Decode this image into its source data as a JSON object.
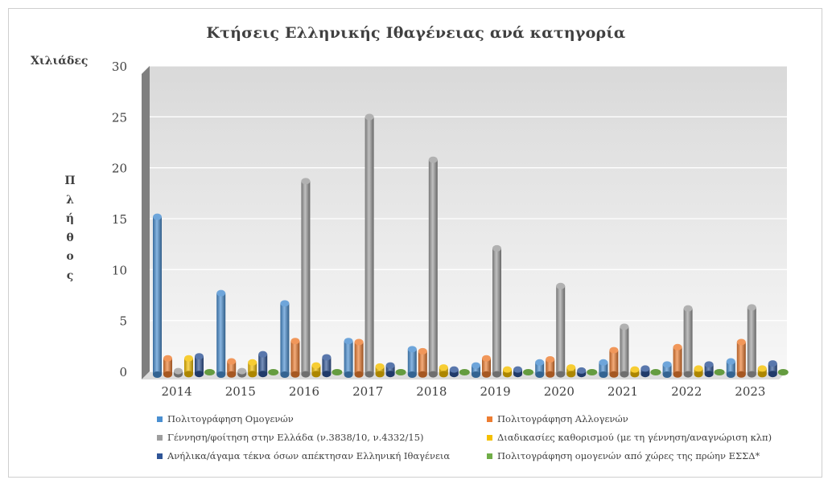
{
  "chart_data": {
    "type": "bar",
    "title": "Κτήσεις Ελληνικής Ιθαγένειας ανά κατηγορία",
    "unit_label": "Χιλιάδες",
    "ylabel": "Πλήθος",
    "ylim": [
      0,
      30
    ],
    "yticks": [
      0,
      5,
      10,
      15,
      20,
      25,
      30
    ],
    "grid": true,
    "legend_position": "bottom",
    "categories": [
      "2014",
      "2015",
      "2016",
      "2017",
      "2018",
      "2019",
      "2020",
      "2021",
      "2022",
      "2023"
    ],
    "series": [
      {
        "name": "Πολιτογράφηση Ομογενών",
        "color": "#4a8fd1",
        "values": [
          15.5,
          8.0,
          7.0,
          3.3,
          2.5,
          0.9,
          1.2,
          1.2,
          1.0,
          1.3
        ]
      },
      {
        "name": "Πολιτογράφηση Αλλογενών",
        "color": "#ed7d31",
        "values": [
          1.6,
          1.3,
          3.3,
          3.2,
          2.3,
          1.6,
          1.5,
          2.4,
          2.7,
          3.2
        ]
      },
      {
        "name": "Γέννηση/φοίτηση  στην Ελλάδα (ν.3838/10, ν.4332/15)",
        "color": "#9e9e9e",
        "values": [
          0.1,
          0.1,
          19.0,
          25.3,
          21.1,
          12.4,
          8.7,
          4.7,
          6.5,
          6.6
        ]
      },
      {
        "name": "Διαδικασίες καθορισμού (με τη γέννηση/αναγνώριση κλπ)",
        "color": "#f5c000",
        "values": [
          1.6,
          1.2,
          0.9,
          0.8,
          0.7,
          0.5,
          0.7,
          0.5,
          0.6,
          0.6
        ]
      },
      {
        "name": "Ανήλικα/άγαμα τέκνα όσων απέκτησαν Ελληνική Ιθαγένεια",
        "color": "#2f5597",
        "values": [
          1.8,
          2.0,
          1.7,
          0.9,
          0.5,
          0.5,
          0.4,
          0.6,
          1.0,
          1.1
        ]
      },
      {
        "name": "Πολιτογράφηση ομογενών από χώρες της πρώην ΕΣΣΔ*",
        "color": "#70ad47",
        "values": [
          0.0,
          0.0,
          0.0,
          0.0,
          0.0,
          0.0,
          0.0,
          0.0,
          0.0,
          0.0
        ]
      }
    ]
  }
}
